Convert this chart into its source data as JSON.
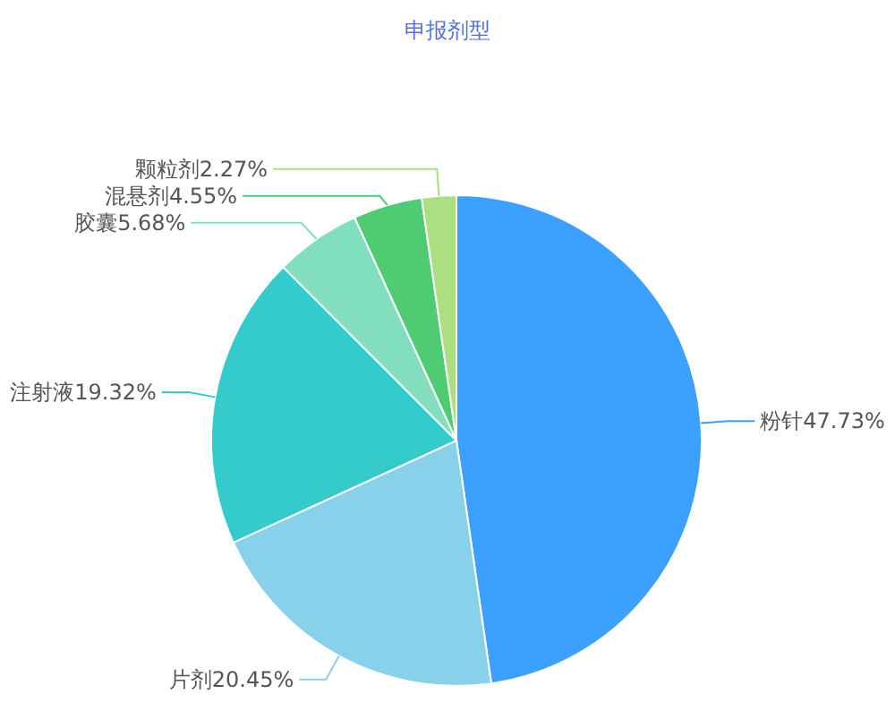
{
  "chart_data": {
    "type": "pie",
    "title": "申报剂型",
    "categories": [
      "粉针",
      "片剂",
      "注射液",
      "胶囊",
      "混悬剂",
      "颗粒剂"
    ],
    "values": [
      47.73,
      20.45,
      19.32,
      5.68,
      4.55,
      2.27
    ],
    "value_labels": [
      "47.73%",
      "20.45%",
      "19.32%",
      "5.68%",
      "4.55%",
      "2.27%"
    ],
    "colors": [
      "#3ba0ff",
      "#88d1ea",
      "#36cbcb",
      "#82dfbe",
      "#4ecb73",
      "#acdf82"
    ]
  }
}
